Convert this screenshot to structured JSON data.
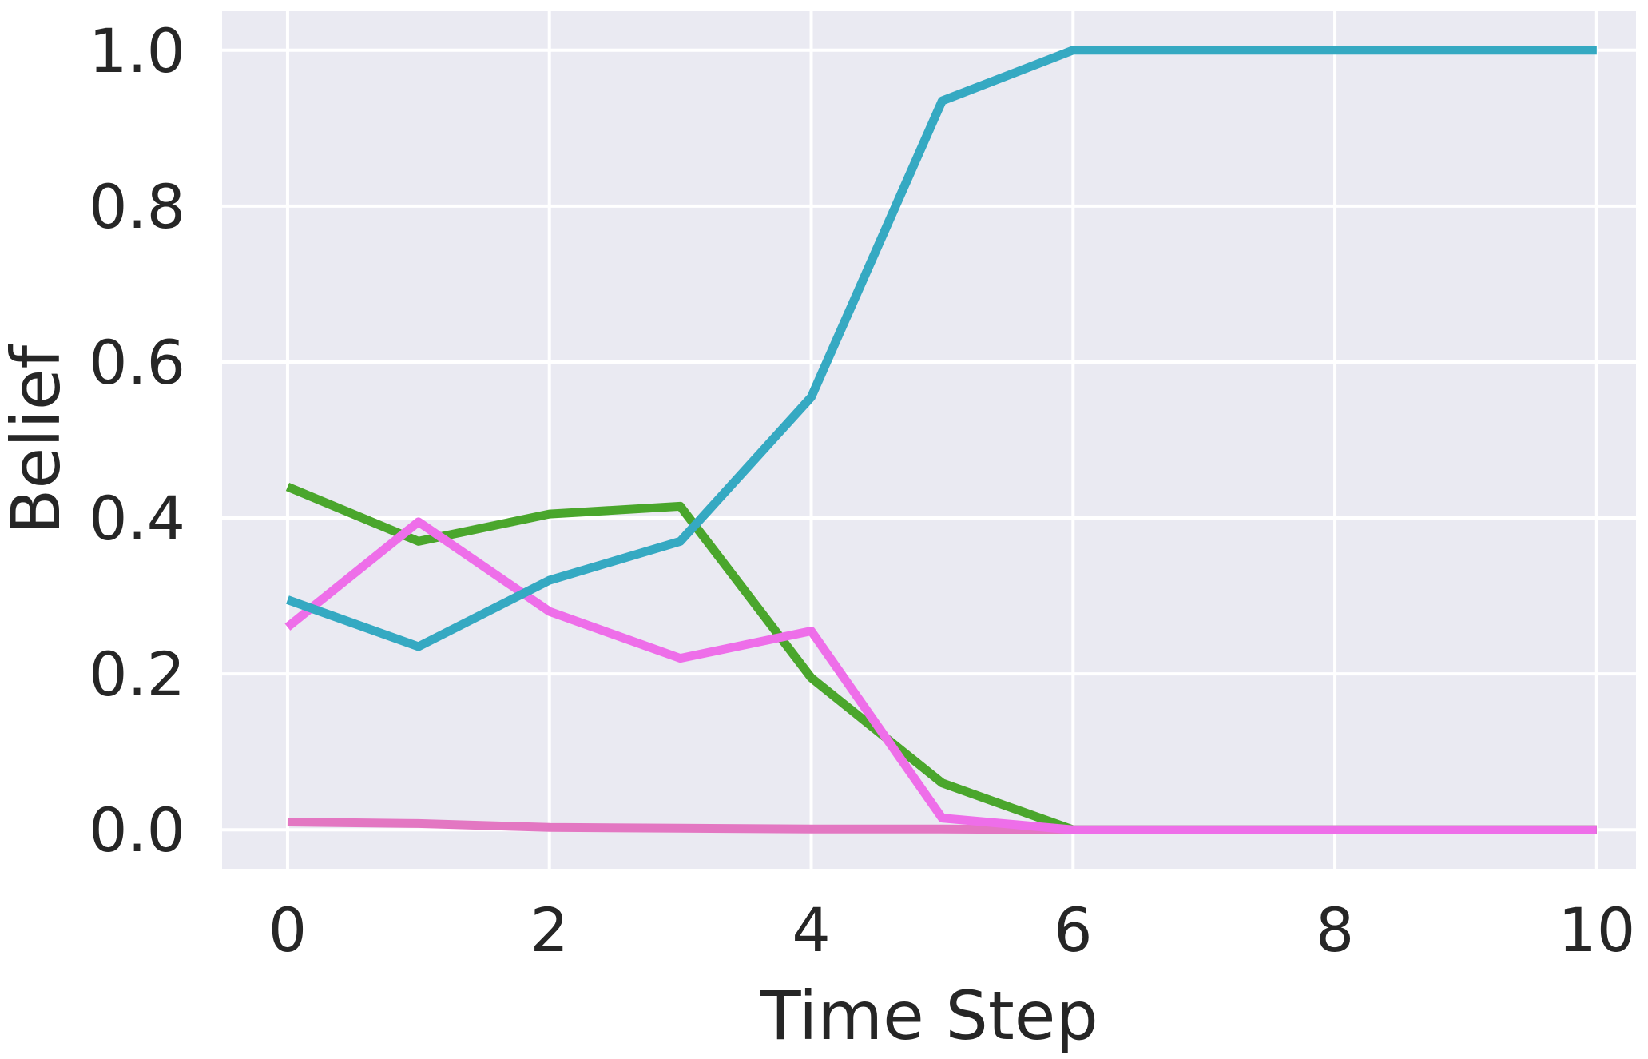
{
  "chart_data": {
    "type": "line",
    "title": "",
    "xlabel": "Time Step",
    "ylabel": "Belief",
    "xlim": [
      -0.5,
      10.3
    ],
    "ylim": [
      -0.05,
      1.05
    ],
    "xticks": [
      0,
      2,
      4,
      6,
      8,
      10
    ],
    "xtick_labels": [
      "0",
      "2",
      "4",
      "6",
      "8",
      "10"
    ],
    "yticks": [
      0.0,
      0.2,
      0.4,
      0.6,
      0.8,
      1.0
    ],
    "ytick_labels": [
      "0.0",
      "0.2",
      "0.4",
      "0.6",
      "0.8",
      "1.0"
    ],
    "grid": true,
    "legend": "none",
    "colors": {
      "background": "#eaeaf2",
      "grid": "#ffffff",
      "text": "#262626"
    },
    "x": [
      0,
      1,
      2,
      3,
      4,
      5,
      6,
      7,
      8,
      9,
      10
    ],
    "series": [
      {
        "color": "#e377c2",
        "values": [
          0.01,
          0.008,
          0.003,
          0.002,
          0.001,
          0.001,
          0.0,
          0.0,
          0.0,
          0.0,
          0.0
        ]
      },
      {
        "color": "#4aa62c",
        "values": [
          0.44,
          0.37,
          0.405,
          0.415,
          0.195,
          0.06,
          0.0,
          0.0,
          0.0,
          0.0,
          0.0
        ]
      },
      {
        "color": "#ee6ee9",
        "values": [
          0.26,
          0.395,
          0.28,
          0.22,
          0.255,
          0.015,
          0.0,
          0.0,
          0.0,
          0.0,
          0.0
        ]
      },
      {
        "color": "#35a9c2",
        "values": [
          0.295,
          0.235,
          0.32,
          0.37,
          0.555,
          0.935,
          1.0,
          1.0,
          1.0,
          1.0,
          1.0
        ]
      }
    ]
  }
}
